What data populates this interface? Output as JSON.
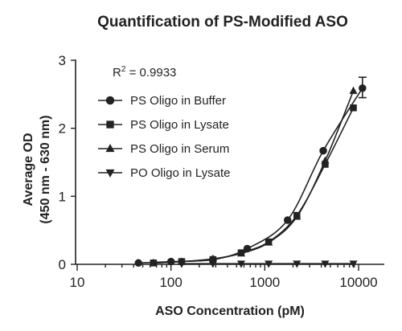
{
  "chart_data": {
    "type": "scatter",
    "title": "Quantification of PS-Modified ASO",
    "xlabel": "ASO Concentration (pM)",
    "ylabel_line1": "Average OD",
    "ylabel_line2": "(450 nm - 630 nm)",
    "x_scale": "log",
    "xlim": [
      10,
      15000
    ],
    "ylim": [
      0,
      3
    ],
    "x_ticks": [
      10,
      100,
      1000,
      10000
    ],
    "x_tick_labels": [
      "10",
      "100",
      "1000",
      "10000"
    ],
    "y_ticks": [
      0,
      1,
      2,
      3
    ],
    "y_tick_labels": [
      "0",
      "1",
      "2",
      "3"
    ],
    "annotation": {
      "text": "R",
      "superscript": "2",
      "rest": " = 0.9933"
    },
    "legend_position": "top-left",
    "grid": false,
    "series": [
      {
        "name": "PS Oligo in Buffer",
        "marker": "circle",
        "x": [
          45,
          100,
          280,
          650,
          1750,
          4200,
          11000
        ],
        "y": [
          0.02,
          0.04,
          0.07,
          0.23,
          0.65,
          1.67,
          2.59
        ]
      },
      {
        "name": "PS Oligo in Lysate",
        "marker": "square",
        "x": [
          65,
          130,
          280,
          560,
          1100,
          2200,
          4400,
          8800
        ],
        "y": [
          0.02,
          0.04,
          0.07,
          0.17,
          0.33,
          0.72,
          1.47,
          2.3
        ]
      },
      {
        "name": "PS Oligo in Serum",
        "marker": "triangle-up",
        "x": [
          65,
          130,
          280,
          560,
          1100,
          2200,
          4400,
          8800
        ],
        "y": [
          0.02,
          0.04,
          0.08,
          0.16,
          0.32,
          0.7,
          1.52,
          2.55
        ]
      },
      {
        "name": "PO Oligo in Lysate",
        "marker": "triangle-down",
        "x": [
          130,
          280,
          560,
          1100,
          2200,
          4400,
          8800
        ],
        "y": [
          0.01,
          0.01,
          0.01,
          0.01,
          0.01,
          0.01,
          0.01
        ]
      }
    ],
    "error_bars": [
      {
        "series": "PS Oligo in Buffer",
        "x": 11000,
        "low": 2.45,
        "high": 2.75
      }
    ]
  }
}
